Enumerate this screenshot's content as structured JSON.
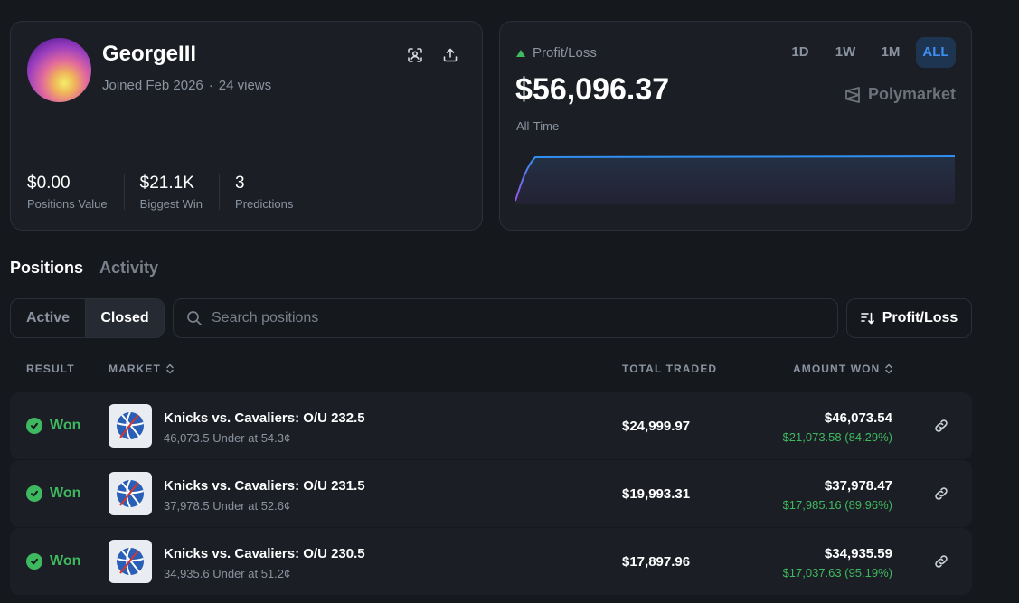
{
  "profile": {
    "username": "GeorgeIII",
    "joined": "Joined Feb 2026",
    "views": "24 views",
    "stats": [
      {
        "value": "$0.00",
        "label": "Positions Value"
      },
      {
        "value": "$21.1K",
        "label": "Biggest Win"
      },
      {
        "value": "3",
        "label": "Predictions"
      }
    ]
  },
  "pnl": {
    "label": "Profit/Loss",
    "value": "$56,096.37",
    "period": "All-Time",
    "ranges": [
      "1D",
      "1W",
      "1M",
      "ALL"
    ],
    "active_range": "ALL",
    "brand": "Polymarket"
  },
  "tabs": {
    "positions": "Positions",
    "activity": "Activity"
  },
  "filter": {
    "active": "Active",
    "closed": "Closed"
  },
  "search": {
    "placeholder": "Search positions"
  },
  "sort": {
    "label": "Profit/Loss"
  },
  "table": {
    "headers": {
      "result": "RESULT",
      "market": "MARKET",
      "total_traded": "TOTAL TRADED",
      "amount_won": "AMOUNT WON"
    },
    "rows": [
      {
        "result": "Won",
        "title": "Knicks vs. Cavaliers: O/U 232.5",
        "detail": "46,073.5 Under at 54.3¢",
        "traded": "$24,999.97",
        "amount": "$46,073.54",
        "gain": "$21,073.58 (84.29%)"
      },
      {
        "result": "Won",
        "title": "Knicks vs. Cavaliers: O/U 231.5",
        "detail": "37,978.5 Under at 52.6¢",
        "traded": "$19,993.31",
        "amount": "$37,978.47",
        "gain": "$17,985.16 (89.96%)"
      },
      {
        "result": "Won",
        "title": "Knicks vs. Cavaliers: O/U 230.5",
        "detail": "34,935.6 Under at 51.2¢",
        "traded": "$17,897.96",
        "amount": "$34,935.59",
        "gain": "$17,037.63 (95.19%)"
      }
    ]
  },
  "colors": {
    "accent": "#3d8ef0",
    "positive": "#3fb95f",
    "background": "#15181d",
    "card": "#1b1f25"
  }
}
